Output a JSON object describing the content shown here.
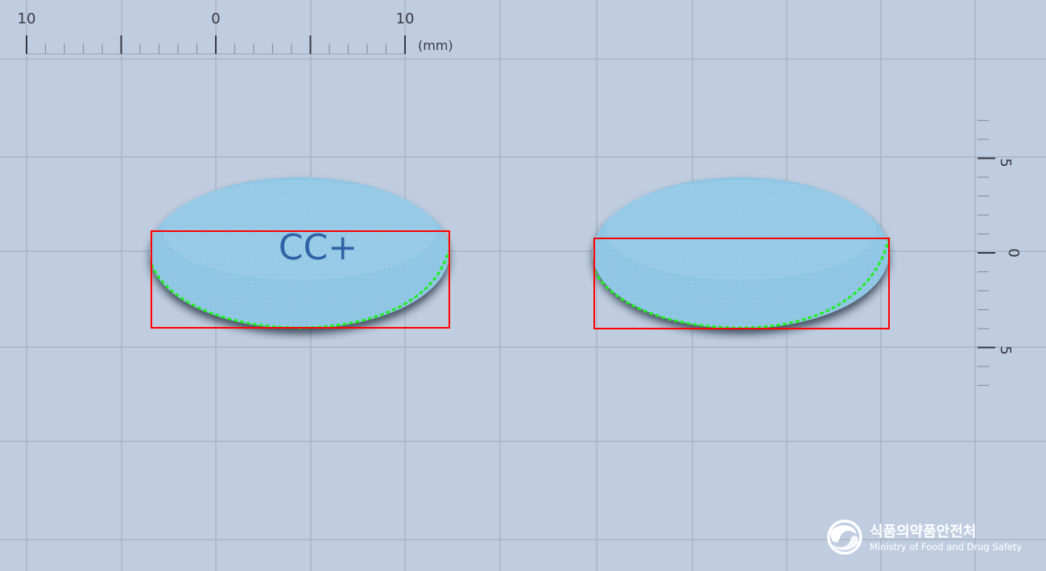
{
  "top_ruler": {
    "labels": [
      {
        "text": "10",
        "mm": -10
      },
      {
        "text": "0",
        "mm": 0
      },
      {
        "text": "10",
        "mm": 10
      }
    ],
    "unit": "(mm)"
  },
  "side_ruler": {
    "labels": [
      {
        "text": "5",
        "mm": -5
      },
      {
        "text": "0",
        "mm": 0
      },
      {
        "text": "5",
        "mm": 5
      }
    ]
  },
  "tablets": [
    {
      "id": "front",
      "imprint": "CC+",
      "color": "#8fc6e4"
    },
    {
      "id": "back",
      "imprint": "",
      "color": "#8fc6e4"
    }
  ],
  "overlay_colors": {
    "bounding_box": "#ff0000",
    "contour": "#22ee22"
  },
  "logo": {
    "korean": "식품의약품안전처",
    "english": "Ministry of Food and Drug Safety"
  }
}
